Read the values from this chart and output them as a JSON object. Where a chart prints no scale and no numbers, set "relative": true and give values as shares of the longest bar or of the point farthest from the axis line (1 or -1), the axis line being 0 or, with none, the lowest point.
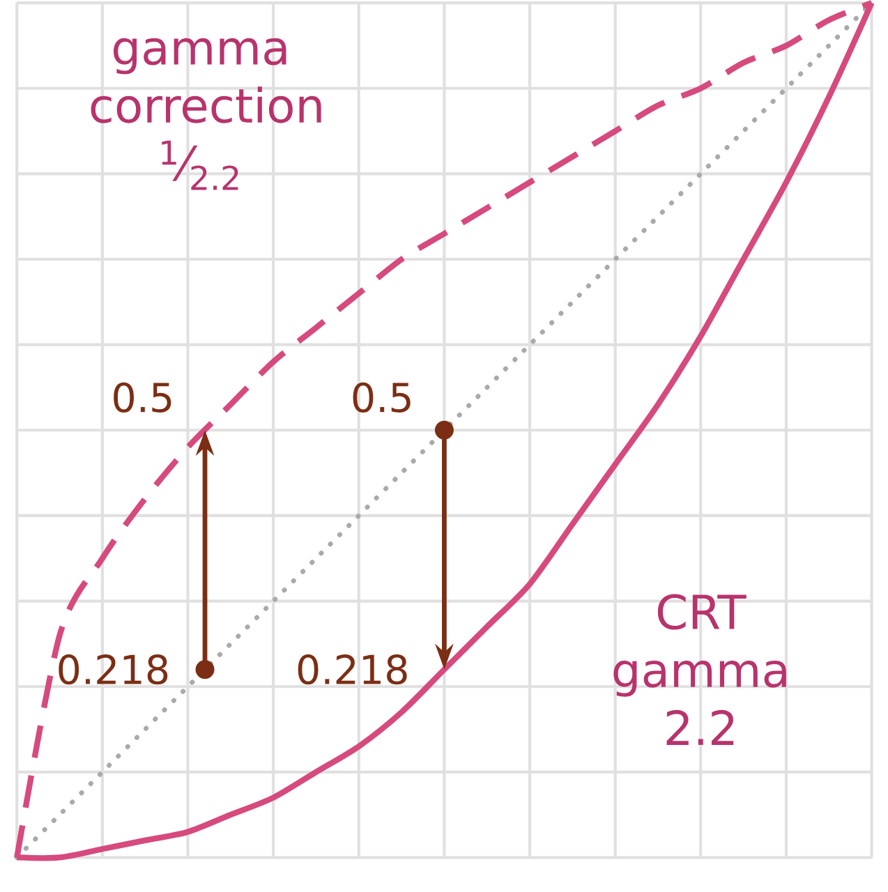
{
  "chart_data": {
    "type": "line",
    "relative": true,
    "grid": true,
    "categories": [
      null,
      null,
      null,
      null,
      null,
      null,
      null,
      null,
      null,
      null,
      null,
      null,
      null,
      null,
      null,
      null,
      null,
      null,
      null,
      null,
      null
    ],
    "series": [
      {
        "name": "gamma correction $^{1}$⁄$_{2.2}$",
        "color": "#d64a7e",
        "line_style": "dashed",
        "values": [
          0,
          0.26,
          0.35,
          0.42,
          0.48,
          0.53,
          0.58,
          0.62,
          0.66,
          0.7,
          0.73,
          0.76,
          0.79,
          0.82,
          0.85,
          0.88,
          0.9,
          0.93,
          0.95,
          0.98,
          1
        ]
      },
      {
        "name": "CRT gamma 2.2",
        "color": "#d64a7e",
        "line_style": "solid",
        "values": [
          0,
          0.0,
          0.01,
          0.02,
          0.03,
          0.05,
          0.07,
          0.1,
          0.13,
          0.17,
          0.22,
          0.27,
          0.32,
          0.39,
          0.46,
          0.53,
          0.61,
          0.7,
          0.79,
          0.89,
          1
        ]
      },
      {
        "color": "#aaaaaa",
        "line_style": "dotted",
        "values": [
          0,
          0.05,
          0.1,
          0.15,
          0.2,
          0.25,
          0.3,
          0.35,
          0.4,
          0.45,
          0.5,
          0.55,
          0.6,
          0.65,
          0.7,
          0.75,
          0.8,
          0.85,
          0.9,
          0.95,
          1
        ]
      }
    ],
    "annotations": [
      "0.5",
      "0.218",
      "0.5",
      "0.218"
    ]
  }
}
